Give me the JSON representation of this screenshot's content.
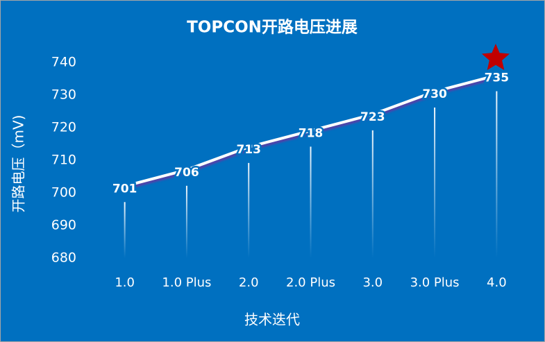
{
  "chart_data": {
    "type": "line",
    "title": "TOPCON开路电压进展",
    "x_label": "技术迭代",
    "y_label": "开路电压（mV)",
    "categories": [
      "1.0",
      "1.0 Plus",
      "2.0",
      "2.0 Plus",
      "3.0",
      "3.0 Plus",
      "4.0"
    ],
    "values": [
      701,
      706,
      713,
      718,
      723,
      730,
      735
    ],
    "color": "#ffffff",
    "ylim": [
      680,
      740
    ],
    "yticks": [
      680,
      690,
      700,
      710,
      720,
      730,
      740
    ],
    "grid": false
  }
}
